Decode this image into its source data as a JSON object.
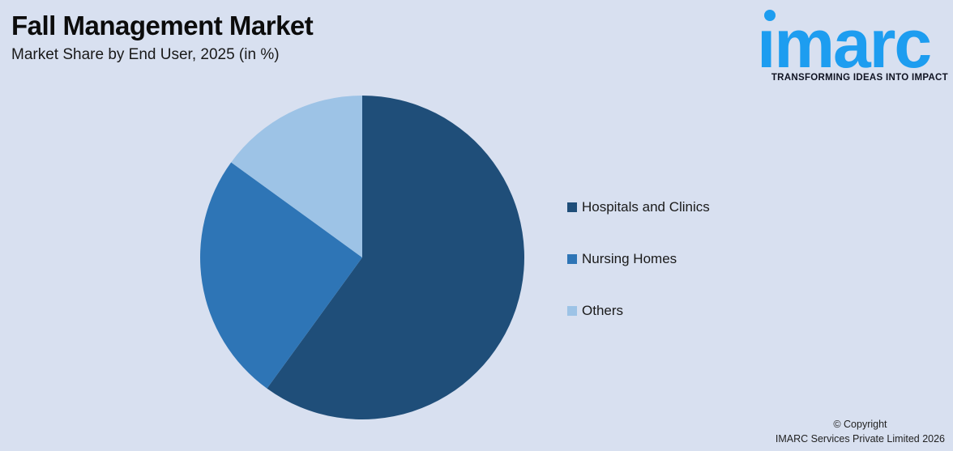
{
  "header": {
    "title": "Fall Management Market",
    "subtitle": "Market Share by End User, 2025 (in %)"
  },
  "logo": {
    "text": "imarc",
    "tagline": "TRANSFORMING IDEAS INTO IMPACT",
    "color": "#1d9df0"
  },
  "footer": {
    "line1": "© Copyright",
    "line2": "IMARC Services Private Limited 2026"
  },
  "colors": {
    "background": "#d8e0f0",
    "text": "#0c0c0c"
  },
  "chart_data": {
    "type": "pie",
    "title": "Market Share by End User, 2025 (in %)",
    "categories": [
      "Hospitals and Clinics",
      "Nursing Homes",
      "Others"
    ],
    "values": [
      60,
      25,
      15
    ],
    "unit": "%",
    "colors": [
      "#1f4e79",
      "#2e75b6",
      "#9dc3e6"
    ],
    "start_angle_deg": 0,
    "direction": "clockwise",
    "legend_position": "right",
    "data_labels": false
  }
}
